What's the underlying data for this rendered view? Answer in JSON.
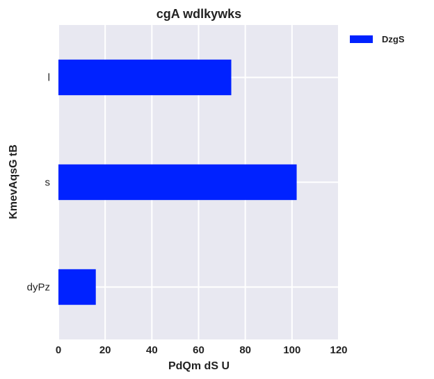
{
  "chart_data": {
    "type": "bar",
    "orientation": "horizontal",
    "title": "cgA wdlkywks",
    "xlabel": "PdQm dS U",
    "ylabel": "KmevAqsG tB",
    "categories": [
      "l",
      "s",
      "dyPz"
    ],
    "series": [
      {
        "name": "DzgS",
        "values": [
          74,
          102,
          16
        ],
        "color": "#0022ff"
      }
    ],
    "xlim": [
      0,
      120
    ],
    "xticks": [
      "0",
      "20",
      "40",
      "60",
      "80",
      "100",
      "120"
    ],
    "grid": true,
    "legend_position": "outside-top-right",
    "colors": {
      "plot_background": "#e8e8f1",
      "grid": "#ffffff",
      "bar": "#0022ff"
    }
  }
}
